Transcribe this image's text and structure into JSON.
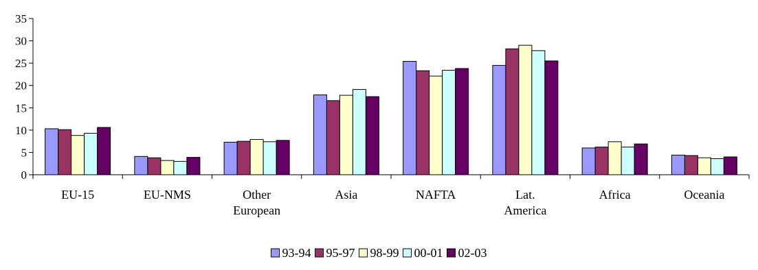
{
  "chart_data": {
    "type": "bar",
    "categories": [
      [
        "EU-15"
      ],
      [
        "EU-NMS"
      ],
      [
        "Other",
        "European"
      ],
      [
        "Asia"
      ],
      [
        "NAFTA"
      ],
      [
        "Lat.",
        "America"
      ],
      [
        "Africa"
      ],
      [
        "Oceania"
      ]
    ],
    "series": [
      {
        "name": "93-94",
        "color": "#9999ff",
        "values": [
          10.3,
          4.1,
          7.3,
          17.9,
          25.4,
          24.5,
          6.0,
          4.4
        ]
      },
      {
        "name": "95-97",
        "color": "#993366",
        "values": [
          10.1,
          3.8,
          7.5,
          16.6,
          23.3,
          28.2,
          6.2,
          4.3
        ]
      },
      {
        "name": "98-99",
        "color": "#ffffcc",
        "values": [
          8.8,
          3.2,
          7.9,
          17.8,
          22.1,
          29.0,
          7.4,
          3.8
        ]
      },
      {
        "name": "00-01",
        "color": "#ccffff",
        "values": [
          9.3,
          3.0,
          7.4,
          19.1,
          23.4,
          27.8,
          6.2,
          3.6
        ]
      },
      {
        "name": "02-03",
        "color": "#660066",
        "values": [
          10.6,
          3.9,
          7.7,
          17.5,
          23.8,
          25.5,
          6.9,
          4.0
        ]
      }
    ],
    "yticks": [
      "0",
      "5",
      "10",
      "15",
      "20",
      "25",
      "30",
      "35"
    ],
    "ylim": [
      0,
      35
    ],
    "grid": false,
    "legend": "bottom-center",
    "title": "",
    "xlabel": "",
    "ylabel": ""
  }
}
